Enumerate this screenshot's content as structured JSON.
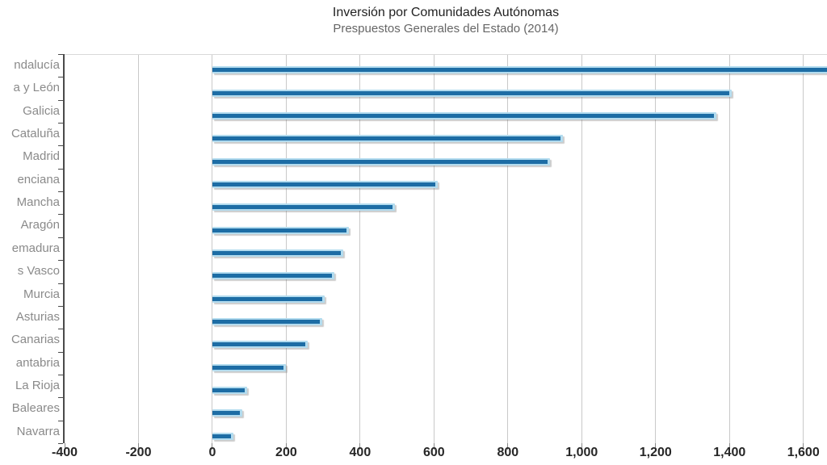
{
  "chart_data": {
    "type": "bar",
    "orientation": "horizontal",
    "title": "Inversión por Comunidades Autónomas",
    "subtitle": "Prespuestos Generales del Estado (2014)",
    "categories": [
      "ndalucía",
      "a y León",
      "Galicia",
      "Cataluña",
      "Madrid",
      "enciana",
      "Mancha",
      "Aragón",
      "emadura",
      "s Vasco",
      "Murcia",
      "Asturias",
      "Canarias",
      "antabria",
      "La Rioja",
      "Baleares",
      "Navarra"
    ],
    "values": [
      1700,
      1405,
      1365,
      950,
      915,
      610,
      495,
      370,
      355,
      330,
      305,
      297,
      258,
      200,
      95,
      80,
      57
    ],
    "first_bar_clipped_at_right_edge": true,
    "xlim": [
      -400,
      1664
    ],
    "x_ticks": [
      -400,
      -200,
      0,
      200,
      400,
      600,
      800,
      1000,
      1200,
      1400,
      1600
    ],
    "x_tick_labels": [
      "-400",
      "-200",
      "0",
      "200",
      "400",
      "600",
      "800",
      "1,000",
      "1,200",
      "1,400",
      "1,600"
    ],
    "grid": true,
    "legend": "none",
    "colors": {
      "bar_dark": "#1d6da5",
      "bar_light": "#b3dcef",
      "gridline": "#c9c9c9",
      "axis_line": "#4a4a4a",
      "title_text": "#222222",
      "subtitle_text": "#666666",
      "y_label_text": "#8a8a8a",
      "x_label_text": "#262626"
    }
  }
}
